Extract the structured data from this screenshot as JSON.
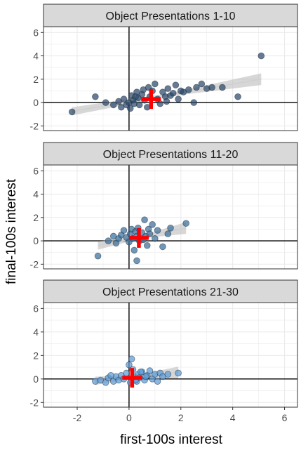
{
  "axes": {
    "xlabel": "first-100s interest",
    "ylabel": "final-100s interest",
    "xlim": [
      -3.3,
      6.5
    ],
    "ylim": [
      -2.4,
      6.5
    ],
    "xticks": [
      -2,
      0,
      2,
      4,
      6
    ],
    "yticks": [
      -2,
      0,
      2,
      4,
      6
    ],
    "grid": true
  },
  "colors": {
    "panel_strip_bg": "#d9d9d9",
    "panel_bg": "#ffffff",
    "grid": "#ebebeb",
    "axis_line": "#000000",
    "ribbon": "#bdbdbd",
    "fit_line": "#d0d0d0",
    "mean_marker": "#ff0000"
  },
  "chart_data": [
    {
      "type": "scatter",
      "title": "Object Presentations 1-10",
      "point_color": "#2c4a6b",
      "fit": {
        "x0": -2.2,
        "y0": -0.75,
        "x1": 5.1,
        "y1": 2.0
      },
      "mean": {
        "x": 0.85,
        "y": 0.3
      },
      "points": [
        [
          -2.2,
          -0.8
        ],
        [
          -1.3,
          0.5
        ],
        [
          -0.9,
          0.0
        ],
        [
          -0.6,
          -0.2
        ],
        [
          -0.4,
          0.1
        ],
        [
          -0.3,
          -0.4
        ],
        [
          -0.2,
          0.3
        ],
        [
          -0.1,
          -0.2
        ],
        [
          0.0,
          0.0
        ],
        [
          0.05,
          -0.5
        ],
        [
          0.1,
          0.6
        ],
        [
          0.15,
          0.2
        ],
        [
          0.2,
          -0.1
        ],
        [
          0.3,
          0.9
        ],
        [
          0.35,
          0.4
        ],
        [
          0.4,
          -0.2
        ],
        [
          0.5,
          0.7
        ],
        [
          0.55,
          1.1
        ],
        [
          0.6,
          0.2
        ],
        [
          0.7,
          -0.4
        ],
        [
          0.75,
          1.3
        ],
        [
          0.8,
          0.5
        ],
        [
          0.9,
          1.0
        ],
        [
          1.0,
          1.6
        ],
        [
          1.1,
          0.3
        ],
        [
          1.2,
          -0.1
        ],
        [
          1.3,
          0.9
        ],
        [
          1.4,
          0.5
        ],
        [
          1.5,
          1.2
        ],
        [
          1.6,
          0.6
        ],
        [
          1.7,
          0.8
        ],
        [
          1.8,
          1.5
        ],
        [
          1.9,
          0.3
        ],
        [
          2.0,
          1.0
        ],
        [
          2.1,
          0.9
        ],
        [
          2.3,
          1.1
        ],
        [
          2.5,
          0.0
        ],
        [
          2.6,
          1.3
        ],
        [
          2.8,
          1.6
        ],
        [
          3.0,
          1.2
        ],
        [
          3.2,
          1.3
        ],
        [
          3.6,
          1.3
        ],
        [
          4.2,
          0.5
        ],
        [
          5.1,
          4.0
        ],
        [
          1.45,
          0.1
        ],
        [
          0.25,
          0.5
        ]
      ]
    },
    {
      "type": "scatter",
      "title": "Object Presentations 11-20",
      "point_color": "#3a6e9a",
      "fit": {
        "x0": -1.2,
        "y0": -0.4,
        "x1": 2.2,
        "y1": 1.1
      },
      "mean": {
        "x": 0.38,
        "y": 0.25
      },
      "points": [
        [
          -1.2,
          -1.3
        ],
        [
          -0.8,
          0.0
        ],
        [
          -0.6,
          0.4
        ],
        [
          -0.5,
          -0.2
        ],
        [
          -0.4,
          0.2
        ],
        [
          -0.3,
          0.5
        ],
        [
          -0.2,
          0.9
        ],
        [
          -0.1,
          0.3
        ],
        [
          0.0,
          -0.1
        ],
        [
          0.05,
          0.6
        ],
        [
          0.1,
          1.0
        ],
        [
          0.15,
          0.2
        ],
        [
          0.2,
          -0.8
        ],
        [
          0.25,
          0.8
        ],
        [
          0.3,
          0.4
        ],
        [
          0.35,
          1.1
        ],
        [
          0.4,
          0.0
        ],
        [
          0.5,
          0.7
        ],
        [
          0.6,
          1.8
        ],
        [
          0.65,
          0.4
        ],
        [
          0.7,
          -0.4
        ],
        [
          0.75,
          1.0
        ],
        [
          0.8,
          0.6
        ],
        [
          0.9,
          1.4
        ],
        [
          1.0,
          0.2
        ],
        [
          1.1,
          0.9
        ],
        [
          1.3,
          -0.5
        ],
        [
          1.5,
          0.6
        ],
        [
          1.6,
          1.1
        ],
        [
          2.2,
          1.5
        ],
        [
          0.3,
          -1.7
        ],
        [
          0.55,
          0.1
        ]
      ]
    },
    {
      "type": "scatter",
      "title": "Object Presentations 21-30",
      "point_color": "#5b9bd5",
      "fit": {
        "x0": -1.3,
        "y0": -0.15,
        "x1": 1.9,
        "y1": 0.55
      },
      "mean": {
        "x": 0.12,
        "y": 0.1
      },
      "points": [
        [
          -1.3,
          -0.2
        ],
        [
          -1.1,
          -0.1
        ],
        [
          -0.9,
          -0.3
        ],
        [
          -0.8,
          0.1
        ],
        [
          -0.6,
          -0.2
        ],
        [
          -0.5,
          0.2
        ],
        [
          -0.4,
          -0.1
        ],
        [
          -0.3,
          0.3
        ],
        [
          -0.2,
          0.0
        ],
        [
          -0.1,
          0.5
        ],
        [
          0.0,
          1.2
        ],
        [
          0.05,
          -0.3
        ],
        [
          0.1,
          1.7
        ],
        [
          0.15,
          0.8
        ],
        [
          0.2,
          0.2
        ],
        [
          0.3,
          -0.2
        ],
        [
          0.35,
          0.4
        ],
        [
          0.4,
          0.1
        ],
        [
          0.5,
          0.6
        ],
        [
          0.6,
          -0.1
        ],
        [
          0.7,
          0.3
        ],
        [
          0.8,
          0.7
        ],
        [
          0.9,
          0.0
        ],
        [
          1.0,
          0.4
        ],
        [
          1.1,
          -0.2
        ],
        [
          1.2,
          0.5
        ],
        [
          1.3,
          0.2
        ],
        [
          1.5,
          0.4
        ],
        [
          1.9,
          0.5
        ],
        [
          -0.7,
          0.3
        ],
        [
          0.25,
          -0.1
        ],
        [
          0.45,
          0.6
        ],
        [
          0.65,
          0.2
        ]
      ]
    }
  ]
}
